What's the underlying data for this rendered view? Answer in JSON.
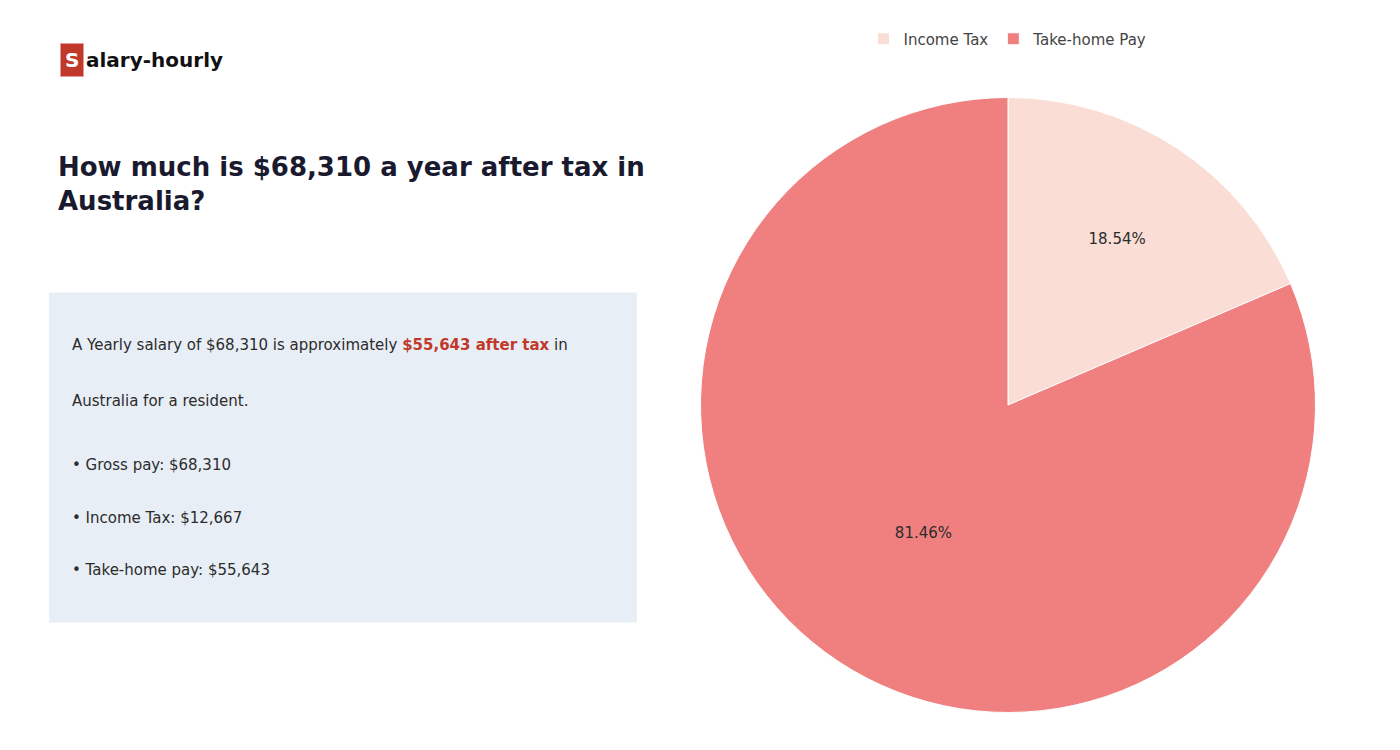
{
  "chart_data": {
    "type": "pie",
    "title": "How much is $68,310 a year after tax in\nAustralia?",
    "categories": [
      "Income Tax",
      "Take-home Pay"
    ],
    "values": [
      18.54,
      81.46
    ],
    "value_labels": [
      "18.54%",
      "81.46%"
    ],
    "colors": [
      "#faddd5",
      "#f08080"
    ],
    "data_labels": true,
    "legend": "top",
    "annotations": [
      [
        {
          "text": "S",
          "color": "#c0392b"
        },
        {
          "text": "alary-hourly"
        }
      ],
      [
        {
          "text": "A Yearly salary of $68,310 is approximately "
        },
        {
          "text": "$55,643 after tax",
          "color": "#c0392b"
        },
        {
          "text": " in"
        }
      ],
      [
        {
          "text": "Australia for a resident."
        }
      ],
      [
        {
          "text": "• Gross pay: $68,310"
        }
      ],
      [
        {
          "text": "• Income Tax: $12,667"
        }
      ],
      [
        {
          "text": "• Take-home pay: $55,643"
        }
      ]
    ]
  }
}
